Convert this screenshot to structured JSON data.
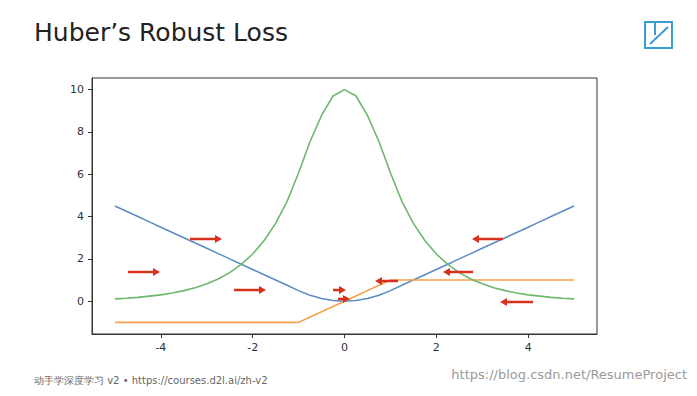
{
  "title": "Huber’s Robust Loss",
  "footer": "动手学深度学习 v2 • https://courses.d2l.ai/zh-v2",
  "watermark": "https://blog.csdn.net/ResumeProject",
  "chart_data": {
    "type": "line",
    "x": [
      -5,
      -4.75,
      -4.5,
      -4.25,
      -4,
      -3.75,
      -3.5,
      -3.25,
      -3,
      -2.75,
      -2.5,
      -2.25,
      -2,
      -1.75,
      -1.5,
      -1.25,
      -1,
      -0.75,
      -0.5,
      -0.25,
      0,
      0.25,
      0.5,
      0.75,
      1,
      1.25,
      1.5,
      1.75,
      2,
      2.25,
      2.5,
      2.75,
      3,
      3.25,
      3.5,
      3.75,
      4,
      4.25,
      4.5,
      4.75,
      5
    ],
    "series": [
      {
        "color": "#5b8ec4",
        "values": [
          4.5,
          4.25,
          4,
          3.75,
          3.5,
          3.25,
          3,
          2.75,
          2.5,
          2.25,
          2,
          1.75,
          1.5,
          1.25,
          1,
          0.75,
          0.5,
          0.28,
          0.13,
          0.03,
          0,
          0.03,
          0.13,
          0.28,
          0.5,
          0.75,
          1,
          1.25,
          1.5,
          1.75,
          2,
          2.25,
          2.5,
          2.75,
          3,
          3.25,
          3.5,
          3.75,
          4,
          4.25,
          4.5
        ]
      },
      {
        "color": "#f5a14c",
        "values": [
          -1,
          -1,
          -1,
          -1,
          -1,
          -1,
          -1,
          -1,
          -1,
          -1,
          -1,
          -1,
          -1,
          -1,
          -1,
          -1,
          -1,
          -0.75,
          -0.5,
          -0.25,
          0,
          0.25,
          0.5,
          0.75,
          1,
          1,
          1,
          1,
          1,
          1,
          1,
          1,
          1,
          1,
          1,
          1,
          1,
          1,
          1,
          1,
          1
        ]
      },
      {
        "color": "#6db86a",
        "values": [
          0.11,
          0.14,
          0.18,
          0.24,
          0.3,
          0.39,
          0.5,
          0.64,
          0.82,
          1.05,
          1.35,
          1.74,
          2.23,
          2.87,
          3.68,
          4.72,
          6.07,
          7.55,
          8.78,
          9.7,
          10,
          9.7,
          8.78,
          7.55,
          6.07,
          4.72,
          3.68,
          2.87,
          2.23,
          1.74,
          1.35,
          1.05,
          0.82,
          0.64,
          0.5,
          0.39,
          0.3,
          0.24,
          0.18,
          0.14,
          0.11
        ]
      }
    ],
    "xlim": [
      -5.5,
      5.5
    ],
    "xticks": [
      -4,
      -2,
      0,
      2,
      4
    ],
    "ylim": [
      -1.55,
      10.55
    ],
    "yticks": [
      0,
      2,
      4,
      6,
      8,
      10
    ],
    "grid": false
  }
}
